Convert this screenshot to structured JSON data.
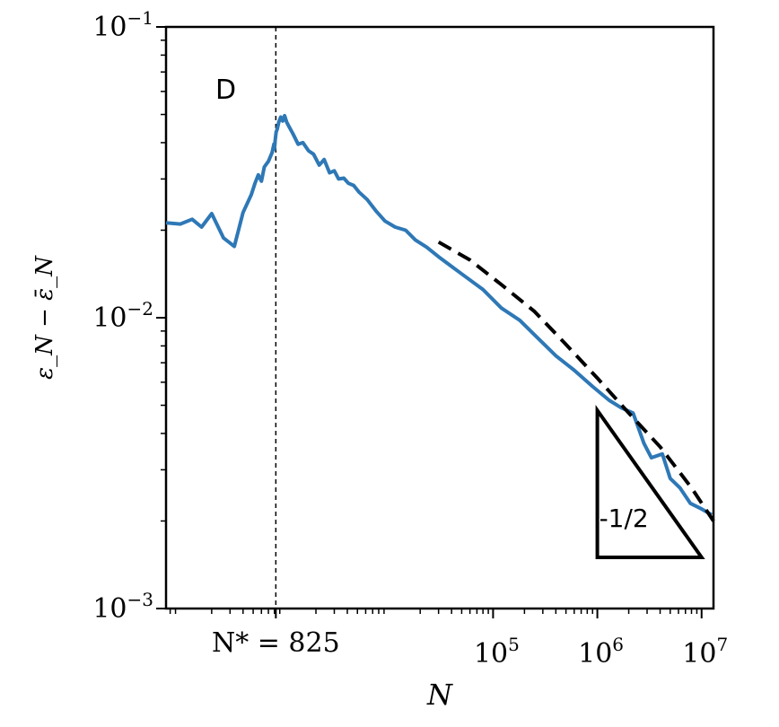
{
  "chart_data": {
    "type": "line",
    "panel_label": "D",
    "xlabel": "N",
    "ylabel": "ε_N − ε̄_N",
    "x_scale": "log",
    "y_scale": "log",
    "xlim": [
      73,
      13000000
    ],
    "ylim": [
      0.001,
      0.1
    ],
    "x_ticks": [
      {
        "value": 825,
        "label": "N* = 825"
      },
      {
        "value": 100000,
        "base": "10",
        "exp": "5"
      },
      {
        "value": 1000000,
        "base": "10",
        "exp": "6"
      },
      {
        "value": 10000000,
        "base": "10",
        "exp": "7"
      }
    ],
    "y_ticks": [
      {
        "value": 0.1,
        "base": "10",
        "exp": "−1"
      },
      {
        "value": 0.01,
        "base": "10",
        "exp": "−2"
      },
      {
        "value": 0.001,
        "base": "10",
        "exp": "−3"
      }
    ],
    "vline": {
      "x": 825,
      "style": "dashed",
      "label": "N* = 825"
    },
    "series": [
      {
        "color": "#2e78b6",
        "style": "solid",
        "x": [
          73,
          100,
          130,
          160,
          200,
          260,
          330,
          400,
          480,
          520,
          560,
          600,
          640,
          700,
          760,
          790,
          800,
          815,
          830,
          850,
          880,
          920,
          960,
          1000,
          1050,
          1100,
          1200,
          1350,
          1500,
          1700,
          1900,
          2150,
          2400,
          2700,
          3000,
          3300,
          3700,
          4100,
          4600,
          5200,
          6200,
          7600,
          9200,
          11500,
          14500,
          18000,
          23000,
          30000,
          40000,
          55000,
          80000,
          120000,
          180000,
          270000,
          400000,
          600000,
          900000,
          1300000,
          1700000,
          2200000,
          2800000,
          3300000,
          4200000,
          5000000,
          6200000,
          7800000,
          10000000,
          12500000
        ],
        "y": [
          0.0212,
          0.021,
          0.0218,
          0.0205,
          0.0228,
          0.0188,
          0.0176,
          0.023,
          0.0265,
          0.029,
          0.031,
          0.0295,
          0.033,
          0.0345,
          0.037,
          0.0395,
          0.038,
          0.041,
          0.0435,
          0.0445,
          0.047,
          0.049,
          0.0475,
          0.0495,
          0.047,
          0.0455,
          0.043,
          0.0395,
          0.04,
          0.0375,
          0.0365,
          0.0335,
          0.035,
          0.0315,
          0.032,
          0.03,
          0.0302,
          0.029,
          0.0285,
          0.027,
          0.0255,
          0.0232,
          0.0215,
          0.0205,
          0.02,
          0.0185,
          0.0175,
          0.0162,
          0.015,
          0.0138,
          0.0125,
          0.0108,
          0.0098,
          0.0085,
          0.0074,
          0.0066,
          0.0058,
          0.0052,
          0.0049,
          0.0047,
          0.0037,
          0.0033,
          0.0034,
          0.0028,
          0.0026,
          0.0023,
          0.0022,
          0.0021
        ]
      },
      {
        "color": "#000000",
        "style": "dashed",
        "x": [
          30000,
          60000,
          120000,
          250000,
          500000,
          1000000,
          2000000,
          4000000,
          8000000,
          13000000
        ],
        "y": [
          0.0182,
          0.0158,
          0.013,
          0.0105,
          0.0081,
          0.0062,
          0.0047,
          0.0036,
          0.0026,
          0.002
        ]
      }
    ],
    "slope_triangle": {
      "label": "-1/2",
      "x_from": 1000000,
      "x_to": 10000000,
      "y_top": 0.0048,
      "y_bottom": 0.0015
    }
  }
}
